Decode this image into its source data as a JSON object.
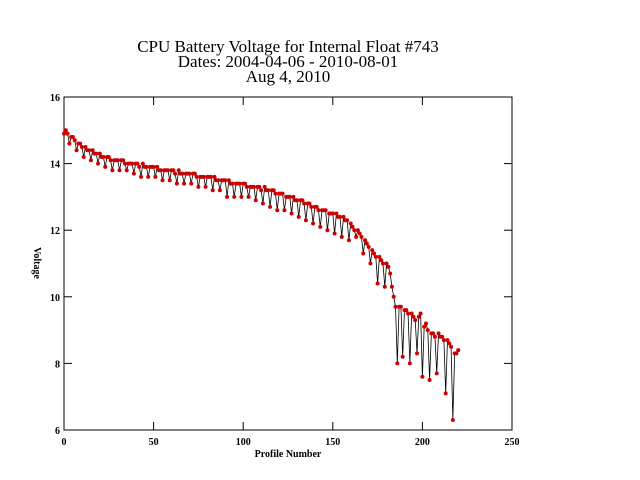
{
  "chart_data": {
    "type": "line",
    "title": [
      "CPU Battery Voltage for Internal Float #743",
      "Dates:  2004-04-06 -  2010-08-01",
      "Aug  4, 2010"
    ],
    "xlabel": "Profile Number",
    "ylabel": "Voltage",
    "xlim": [
      0,
      250
    ],
    "xticks": [
      0,
      50,
      100,
      150,
      200,
      250
    ],
    "ylim": [
      6,
      16
    ],
    "yticks": [
      6,
      8,
      10,
      12,
      14,
      16
    ],
    "line_color": "#000000",
    "marker_color": "#cc0000",
    "x": [
      0,
      1,
      2,
      3,
      4,
      5,
      6,
      7,
      8,
      9,
      10,
      11,
      12,
      13,
      14,
      15,
      16,
      17,
      18,
      19,
      20,
      21,
      22,
      23,
      24,
      25,
      26,
      27,
      28,
      29,
      30,
      31,
      32,
      33,
      34,
      35,
      36,
      37,
      38,
      39,
      40,
      41,
      42,
      43,
      44,
      45,
      46,
      47,
      48,
      49,
      50,
      51,
      52,
      53,
      54,
      55,
      56,
      57,
      58,
      59,
      60,
      61,
      62,
      63,
      64,
      65,
      66,
      67,
      68,
      69,
      70,
      71,
      72,
      73,
      74,
      75,
      76,
      77,
      78,
      79,
      80,
      81,
      82,
      83,
      84,
      85,
      86,
      87,
      88,
      89,
      90,
      91,
      92,
      93,
      94,
      95,
      96,
      97,
      98,
      99,
      100,
      101,
      102,
      103,
      104,
      105,
      106,
      107,
      108,
      109,
      110,
      111,
      112,
      113,
      114,
      115,
      116,
      117,
      118,
      119,
      120,
      121,
      122,
      123,
      124,
      125,
      126,
      127,
      128,
      129,
      130,
      131,
      132,
      133,
      134,
      135,
      136,
      137,
      138,
      139,
      140,
      141,
      142,
      143,
      144,
      145,
      146,
      147,
      148,
      149,
      150,
      151,
      152,
      153,
      154,
      155,
      156,
      157,
      158,
      159,
      160,
      161,
      162,
      163,
      164,
      165,
      166,
      167,
      168,
      169,
      170,
      171,
      172,
      173,
      174,
      175,
      176,
      177,
      178,
      179,
      180,
      181,
      182,
      183,
      184,
      185,
      186,
      187,
      188,
      189,
      190,
      191,
      192,
      193,
      194,
      195,
      196,
      197,
      198,
      199,
      200,
      201,
      202,
      203,
      204,
      205,
      206,
      207,
      208,
      209,
      210,
      211,
      212,
      213,
      214,
      215,
      216,
      217,
      218,
      219,
      220
    ],
    "values": [
      14.9,
      15.0,
      14.9,
      14.6,
      14.8,
      14.8,
      14.7,
      14.4,
      14.6,
      14.6,
      14.5,
      14.2,
      14.5,
      14.4,
      14.4,
      14.1,
      14.4,
      14.3,
      14.3,
      14.0,
      14.3,
      14.2,
      14.2,
      13.9,
      14.2,
      14.2,
      14.1,
      13.8,
      14.1,
      14.1,
      14.1,
      13.8,
      14.1,
      14.1,
      14.0,
      13.8,
      14.0,
      14.0,
      14.0,
      13.7,
      14.0,
      14.0,
      13.9,
      13.6,
      14.0,
      13.9,
      13.9,
      13.6,
      13.9,
      13.9,
      13.9,
      13.6,
      13.9,
      13.8,
      13.8,
      13.5,
      13.8,
      13.8,
      13.8,
      13.5,
      13.8,
      13.8,
      13.7,
      13.4,
      13.8,
      13.7,
      13.7,
      13.4,
      13.7,
      13.7,
      13.7,
      13.4,
      13.7,
      13.7,
      13.6,
      13.3,
      13.6,
      13.6,
      13.6,
      13.3,
      13.6,
      13.6,
      13.6,
      13.2,
      13.6,
      13.5,
      13.5,
      13.2,
      13.5,
      13.5,
      13.5,
      13.0,
      13.5,
      13.4,
      13.4,
      13.0,
      13.4,
      13.4,
      13.4,
      13.0,
      13.4,
      13.4,
      13.3,
      13.0,
      13.3,
      13.3,
      13.3,
      12.9,
      13.3,
      13.3,
      13.2,
      12.8,
      13.3,
      13.2,
      13.2,
      12.7,
      13.2,
      13.2,
      13.1,
      12.6,
      13.1,
      13.1,
      13.1,
      12.6,
      13.0,
      13.0,
      13.0,
      12.5,
      13.0,
      12.9,
      12.9,
      12.4,
      12.9,
      12.9,
      12.8,
      12.3,
      12.8,
      12.8,
      12.7,
      12.2,
      12.7,
      12.7,
      12.6,
      12.1,
      12.6,
      12.6,
      12.6,
      12.0,
      12.5,
      12.5,
      12.5,
      11.9,
      12.5,
      12.4,
      12.4,
      11.8,
      12.4,
      12.3,
      12.3,
      11.7,
      12.2,
      12.1,
      12.0,
      11.8,
      12.0,
      11.9,
      11.8,
      11.3,
      11.7,
      11.6,
      11.5,
      11.0,
      11.4,
      11.3,
      11.2,
      10.4,
      11.2,
      11.1,
      11.0,
      10.3,
      11.0,
      10.9,
      10.7,
      10.3,
      10.0,
      9.7,
      8.0,
      9.7,
      9.7,
      8.2,
      9.6,
      9.6,
      9.5,
      8.0,
      9.5,
      9.4,
      9.3,
      8.3,
      9.4,
      9.5,
      7.6,
      9.1,
      9.2,
      9.0,
      7.5,
      8.9,
      8.9,
      8.8,
      7.7,
      8.9,
      8.8,
      8.8,
      8.7,
      7.1,
      8.7,
      8.6,
      8.5,
      6.3,
      8.3,
      8.3,
      8.4
    ]
  }
}
